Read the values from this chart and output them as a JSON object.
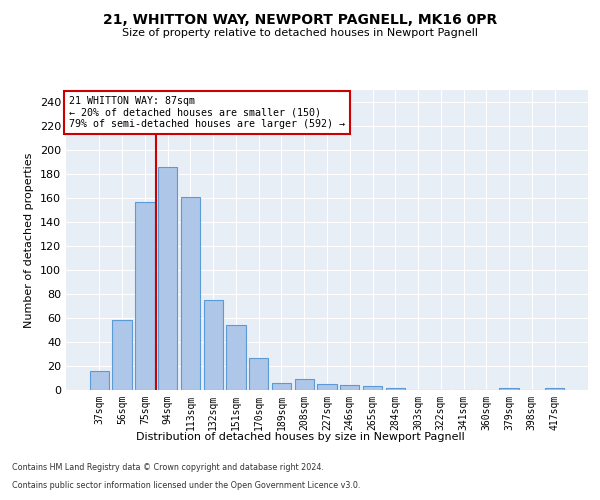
{
  "title": "21, WHITTON WAY, NEWPORT PAGNELL, MK16 0PR",
  "subtitle": "Size of property relative to detached houses in Newport Pagnell",
  "xlabel": "Distribution of detached houses by size in Newport Pagnell",
  "ylabel": "Number of detached properties",
  "bar_values": [
    16,
    58,
    157,
    186,
    161,
    75,
    54,
    27,
    6,
    9,
    5,
    4,
    3,
    2,
    0,
    0,
    0,
    0,
    2,
    0,
    2
  ],
  "bar_labels": [
    "37sqm",
    "56sqm",
    "75sqm",
    "94sqm",
    "113sqm",
    "132sqm",
    "151sqm",
    "170sqm",
    "189sqm",
    "208sqm",
    "227sqm",
    "246sqm",
    "265sqm",
    "284sqm",
    "303sqm",
    "322sqm",
    "341sqm",
    "360sqm",
    "379sqm",
    "398sqm",
    "417sqm"
  ],
  "bar_color": "#aec6e8",
  "bar_edge_color": "#5b9bd5",
  "annotation_text_line1": "21 WHITTON WAY: 87sqm",
  "annotation_text_line2": "← 20% of detached houses are smaller (150)",
  "annotation_text_line3": "79% of semi-detached houses are larger (592) →",
  "annotation_box_color": "#ffffff",
  "annotation_box_edge_color": "#cc0000",
  "vline_color": "#cc0000",
  "vline_x": 2.5,
  "ylim": [
    0,
    250
  ],
  "yticks": [
    0,
    20,
    40,
    60,
    80,
    100,
    120,
    140,
    160,
    180,
    200,
    220,
    240
  ],
  "bg_color": "#e8eef6",
  "footnote1": "Contains HM Land Registry data © Crown copyright and database right 2024.",
  "footnote2": "Contains public sector information licensed under the Open Government Licence v3.0."
}
